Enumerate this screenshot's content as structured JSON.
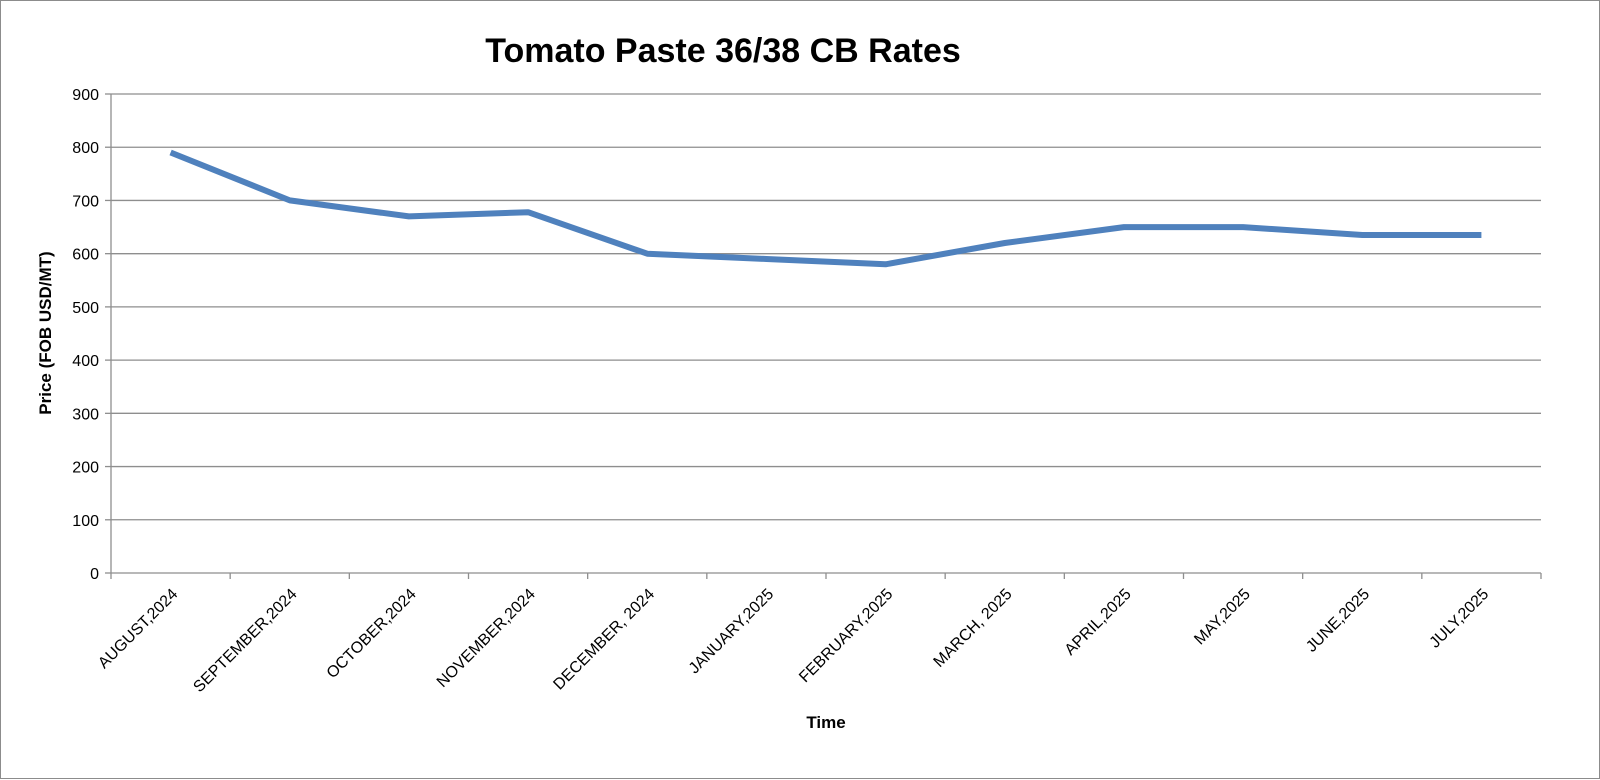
{
  "chart_data": {
    "type": "line",
    "title": "Tomato Paste 36/38 CB Rates",
    "xlabel": "Time",
    "ylabel": "Price (FOB USD/MT)",
    "categories": [
      "AUGUST,2024",
      "SEPTEMBER,2024",
      "OCTOBER,2024",
      "NOVEMBER,2024",
      "DECEMBER, 2024",
      "JANUARY,2025",
      "FEBRUARY,2025",
      "MARCH, 2025",
      "APRIL,2025",
      "MAY,2025",
      "JUNE,2025",
      "JULY,2025"
    ],
    "series": [
      {
        "values": [
          790,
          700,
          670,
          678,
          600,
          590,
          580,
          620,
          650,
          650,
          635,
          635
        ],
        "color": "#4f81bd"
      }
    ],
    "ylim": [
      0,
      900
    ],
    "yticks": [
      "0",
      "100",
      "200",
      "300",
      "400",
      "500",
      "600",
      "700",
      "800",
      "900"
    ],
    "grid": true,
    "legend": "none"
  }
}
